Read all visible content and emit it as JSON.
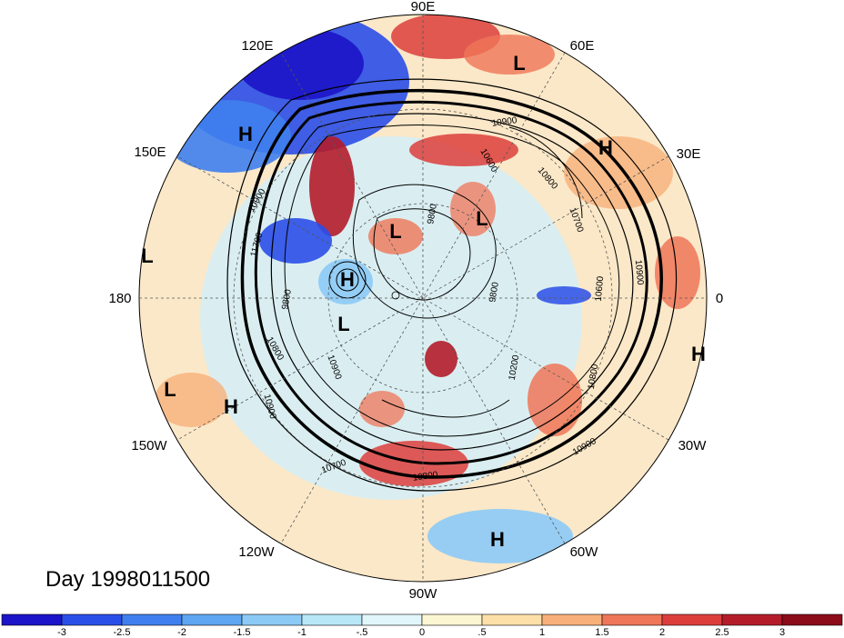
{
  "title": "Day 1998011500",
  "longitude_labels": [
    "90E",
    "60E",
    "30E",
    "0",
    "30W",
    "60W",
    "90W",
    "120W",
    "150W",
    "180",
    "150E",
    "120E"
  ],
  "pressure_centers": [
    {
      "type": "H",
      "lon_label": "near 120E-150E"
    },
    {
      "type": "L",
      "lon_label": "near 60E"
    },
    {
      "type": "H",
      "lon_label": "near 30E"
    },
    {
      "type": "L",
      "lon_label": "inner"
    },
    {
      "type": "L",
      "lon_label": "inner"
    },
    {
      "type": "H",
      "lon_label": "inner"
    },
    {
      "type": "L",
      "lon_label": "inner"
    },
    {
      "type": "L",
      "lon_label": "near 180"
    },
    {
      "type": "H",
      "lon_label": "near 0"
    },
    {
      "type": "L",
      "lon_label": "near 150W"
    },
    {
      "type": "H",
      "lon_label": "near 150W"
    },
    {
      "type": "H",
      "lon_label": "near 60W"
    }
  ],
  "contour_labels": [
    "10900",
    "10800",
    "10700",
    "10900",
    "11700",
    "9800",
    "9800",
    "9800",
    "10600",
    "10800",
    "10900",
    "10900",
    "10200",
    "10800",
    "10700",
    "10600",
    "10800",
    "10900",
    "10900"
  ],
  "colorbar": {
    "tick_labels": [
      "-3",
      "-2.5",
      "-2",
      "-1.5",
      "-1",
      "-.5",
      "0",
      ".5",
      "1",
      "1.5",
      "2",
      "2.5",
      "3"
    ],
    "colors": [
      "#1c14c8",
      "#2a4ee8",
      "#3f7fee",
      "#5fa6f2",
      "#8ccaf6",
      "#b8e8f8",
      "#e0f6fa",
      "#fdf6d2",
      "#fde0a8",
      "#f8b07a",
      "#ef7658",
      "#dc3e3c",
      "#b41c2a",
      "#8c0c1a"
    ]
  }
}
